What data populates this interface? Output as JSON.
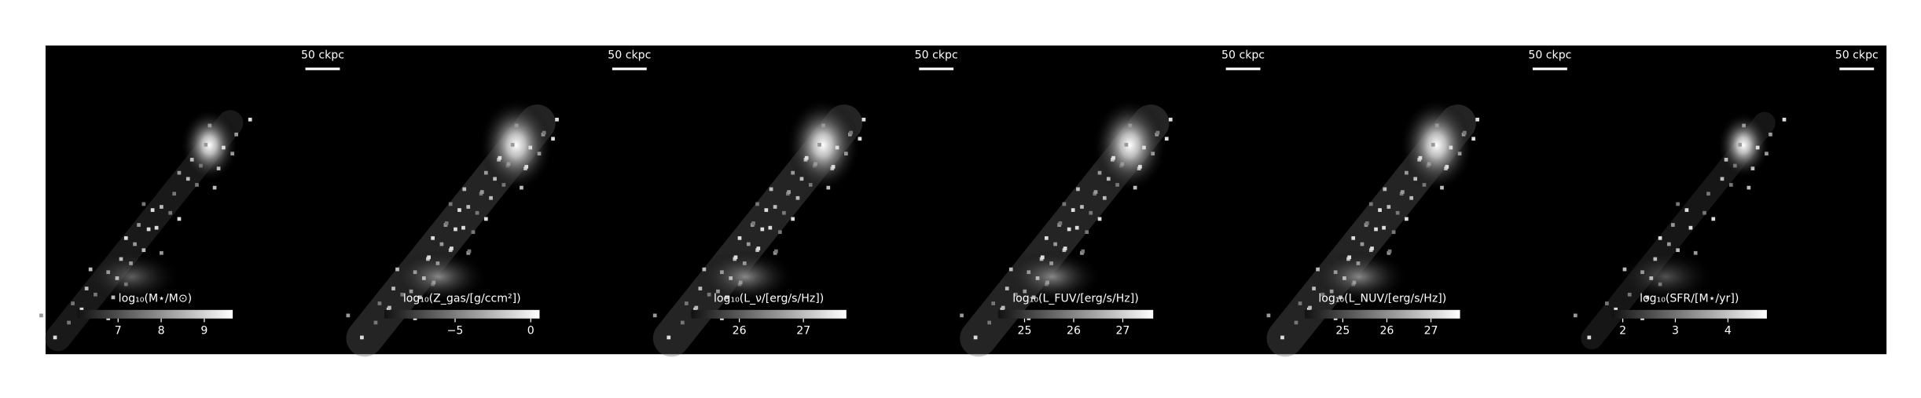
{
  "panels": [
    {
      "scale_bar_label": "50 ckpc",
      "colorbar": {
        "label": "log₁₀(M⋆/M⊙)",
        "clim": [
          6.06,
          9.66
        ],
        "ticks": [
          7,
          8,
          9
        ]
      }
    },
    {
      "scale_bar_label": "50 ckpc",
      "colorbar": {
        "label": "log₁₀(Z_gas/[g/ccm²])",
        "clim": [
          -9.67,
          0.58
        ],
        "ticks": [
          {
            "value": -5,
            "label": "−5"
          },
          0
        ]
      }
    },
    {
      "scale_bar_label": "50 ckpc",
      "colorbar": {
        "label": "log₁₀(L_ν/[erg/s/Hz])",
        "clim": [
          25.25,
          27.67
        ],
        "ticks": [
          26,
          27
        ]
      }
    },
    {
      "scale_bar_label": "50 ckpc",
      "colorbar": {
        "label": "log₁₀(L_FUV/[erg/s/Hz])",
        "clim": [
          24.46,
          27.62
        ],
        "ticks": [
          25,
          26,
          27
        ]
      }
    },
    {
      "scale_bar_label": "50 ckpc",
      "colorbar": {
        "label": "log₁₀(L_NUV/[erg/s/Hz])",
        "clim": [
          24.14,
          27.66
        ],
        "ticks": [
          25,
          26,
          27
        ]
      }
    },
    {
      "scale_bar_label": "50 ckpc",
      "colorbar": {
        "label": "log₁₀(SFR/[M⋆/yr])",
        "clim": [
          1.79,
          4.74
        ],
        "ticks": [
          2,
          3,
          4
        ]
      }
    }
  ]
}
